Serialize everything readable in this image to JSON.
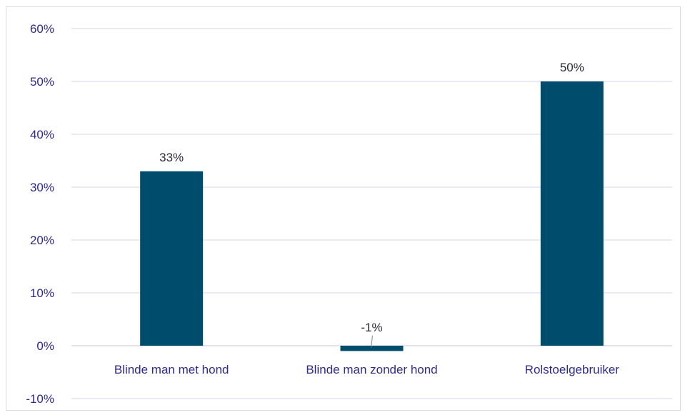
{
  "chart_data": {
    "type": "bar",
    "categories": [
      "Blinde man met hond",
      "Blinde man zonder hond",
      "Rolstoelgebruiker"
    ],
    "values": [
      33,
      -1,
      50
    ],
    "data_labels": [
      "33%",
      "-1%",
      "50%"
    ],
    "ylim": [
      -10,
      60
    ],
    "yticks": [
      60,
      50,
      40,
      30,
      20,
      10,
      0,
      -10
    ],
    "ytick_labels": [
      "60%",
      "50%",
      "40%",
      "30%",
      "20%",
      "10%",
      "0%",
      "-10%"
    ],
    "grid": true,
    "legend": "none",
    "bar_color": "#004c6d",
    "text_color": "#2e2a8c"
  }
}
